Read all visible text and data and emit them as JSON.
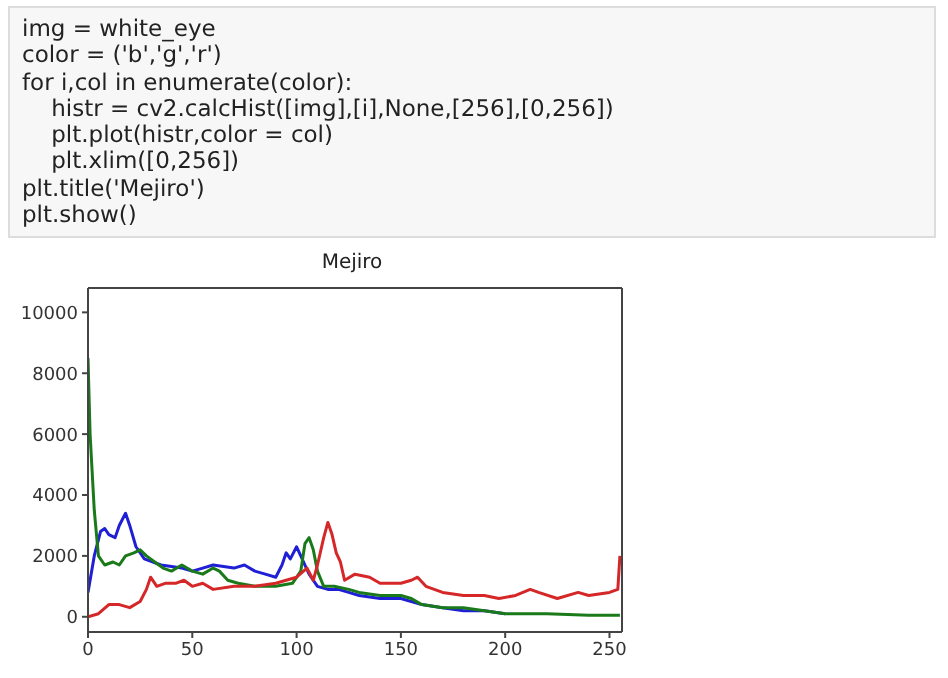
{
  "chart_data": {
    "type": "line",
    "title": "Mejiro",
    "annotations": [
      "img = white_eye",
      "color = ('b','g','r')",
      "for i,col in enumerate(color):",
      "    histr = cv2.calcHist([img],[i],None,[256],[0,256])",
      "    plt.plot(histr,color = col)",
      "    plt.xlim([0,256])",
      "plt.title('Mejiro')",
      "plt.show()"
    ],
    "xlim": [
      0,
      256
    ],
    "xticks": [
      0,
      50,
      100,
      150,
      200,
      250
    ],
    "ylim": [
      -500,
      10800
    ],
    "yticks": [
      0,
      2000,
      4000,
      6000,
      8000,
      10000
    ],
    "marker": "none",
    "line_style": "solid",
    "series": [
      {
        "color": "#1f1fd6",
        "x": [
          0,
          3,
          6,
          8,
          10,
          13,
          15,
          18,
          20,
          23,
          27,
          35,
          45,
          50,
          55,
          60,
          65,
          70,
          75,
          80,
          85,
          90,
          93,
          95,
          97,
          100,
          102,
          104,
          106,
          110,
          115,
          120,
          125,
          130,
          140,
          150,
          160,
          170,
          180,
          190,
          200
        ],
        "values": [
          800,
          2000,
          2800,
          2900,
          2700,
          2600,
          3000,
          3400,
          3000,
          2300,
          1900,
          1700,
          1600,
          1500,
          1600,
          1700,
          1650,
          1600,
          1700,
          1500,
          1400,
          1300,
          1700,
          2100,
          1900,
          2300,
          2000,
          1700,
          1400,
          1000,
          900,
          900,
          800,
          700,
          600,
          600,
          400,
          300,
          200,
          200,
          100
        ]
      },
      {
        "color": "#1a7a1a",
        "x": [
          0,
          1,
          3,
          5,
          8,
          12,
          15,
          18,
          22,
          25,
          28,
          32,
          36,
          40,
          45,
          50,
          55,
          60,
          63,
          67,
          72,
          80,
          90,
          98,
          102,
          104,
          106,
          108,
          110,
          113,
          118,
          125,
          130,
          140,
          150,
          155,
          160,
          170,
          180,
          190,
          200,
          220,
          240,
          255
        ],
        "values": [
          8500,
          6000,
          3500,
          2000,
          1700,
          1800,
          1700,
          2000,
          2100,
          2200,
          2000,
          1800,
          1600,
          1500,
          1700,
          1500,
          1400,
          1600,
          1500,
          1200,
          1100,
          1000,
          1000,
          1100,
          1500,
          2400,
          2600,
          2200,
          1500,
          1000,
          1000,
          900,
          800,
          700,
          700,
          600,
          400,
          300,
          300,
          200,
          100,
          100,
          50,
          50
        ]
      },
      {
        "color": "#d62728",
        "x": [
          0,
          5,
          10,
          15,
          20,
          25,
          28,
          30,
          33,
          37,
          42,
          46,
          50,
          55,
          60,
          70,
          80,
          90,
          100,
          105,
          108,
          110,
          113,
          115,
          117,
          119,
          121,
          123,
          128,
          135,
          140,
          150,
          155,
          158,
          162,
          170,
          180,
          190,
          197,
          205,
          212,
          216,
          225,
          235,
          240,
          250,
          254,
          255
        ],
        "values": [
          0,
          100,
          400,
          400,
          300,
          500,
          900,
          1300,
          1000,
          1100,
          1100,
          1200,
          1000,
          1100,
          900,
          1000,
          1000,
          1100,
          1300,
          1600,
          1200,
          1700,
          2600,
          3100,
          2700,
          2100,
          1800,
          1200,
          1400,
          1300,
          1100,
          1100,
          1200,
          1300,
          1000,
          800,
          700,
          700,
          600,
          700,
          900,
          800,
          600,
          800,
          700,
          800,
          900,
          2000
        ]
      }
    ]
  }
}
